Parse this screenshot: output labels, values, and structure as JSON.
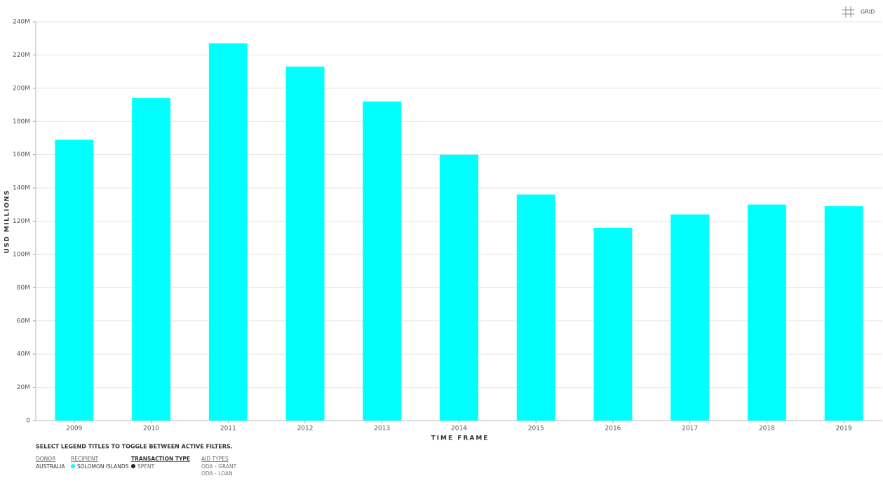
{
  "chart_data": {
    "type": "bar",
    "x_label": "TIME FRAME",
    "y_label": "USD MILLIONS",
    "categories": [
      "2009",
      "2010",
      "2011",
      "2012",
      "2013",
      "2014",
      "2015",
      "2016",
      "2017",
      "2018",
      "2019"
    ],
    "series": [
      {
        "name": "SOLOMON ISLANDS",
        "color": "#00ffff",
        "values": [
          169,
          194,
          227,
          213,
          192,
          160,
          136,
          116,
          124,
          130,
          129
        ]
      }
    ],
    "ylim": [
      0,
      240
    ],
    "yticks": [
      0,
      {
        "value": 20,
        "label": "20M"
      },
      {
        "value": 40,
        "label": "40M"
      },
      {
        "value": 60,
        "label": "60M"
      },
      {
        "value": 80,
        "label": "80M"
      },
      {
        "value": 100,
        "label": "100M"
      },
      {
        "value": 120,
        "label": "120M"
      },
      {
        "value": 140,
        "label": "140M"
      },
      {
        "value": 160,
        "label": "160M"
      },
      {
        "value": 180,
        "label": "180M"
      },
      {
        "value": 200,
        "label": "200M"
      },
      {
        "value": 220,
        "label": "220M"
      },
      {
        "value": 240,
        "label": "240M"
      }
    ],
    "grid": true
  },
  "controls": {
    "grid_button": "GRID"
  },
  "legend": {
    "hint": "SELECT LEGEND TITLES TO TOGGLE BETWEEN ACTIVE FILTERS.",
    "donor_title": "DONOR",
    "donor": "AUSTRALIA",
    "recipient_title": "RECIPIENT",
    "transaction_title": "TRANSACTION TYPE",
    "transaction": "SPENT",
    "aid_title": "AID TYPES",
    "aid_types": [
      "ODA - GRANT",
      "ODA - LOAN"
    ]
  }
}
